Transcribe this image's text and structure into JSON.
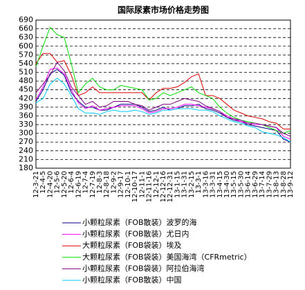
{
  "chart_data": {
    "type": "line",
    "title": "国际尿素市场价格走势图",
    "categories": [
      "12-3-21",
      "12-4-5",
      "12-4-20",
      "12-5-6",
      "12-5-20",
      "12-6-4",
      "12-6-19",
      "12-7-4",
      "12-7-19",
      "12-8-3",
      "12-8-18",
      "12-9-2",
      "12-9-17",
      "12-10-1",
      "12-10-17",
      "12-11-1",
      "12-11-16",
      "12-12-1",
      "12-12-16",
      "12-12-31",
      "13-1-15",
      "13-1-31",
      "13-2-15",
      "13-3-1",
      "13-3-16",
      "13-3-31",
      "13-4-15",
      "13-4-30",
      "13-5-15",
      "13-5-30",
      "13-6-14",
      "13-6-29",
      "13-7-14",
      "13-7-29",
      "13-8-13",
      "13-8-28",
      "13-9-12"
    ],
    "ylim": [
      180,
      690
    ],
    "yticks": [
      180,
      210,
      240,
      270,
      300,
      330,
      360,
      390,
      420,
      450,
      480,
      510,
      540,
      570,
      600,
      630,
      660,
      690
    ],
    "grid": true,
    "series": [
      {
        "name": "小颗粒尿素（FOB散装）波罗的海",
        "color": "#000080",
        "values": [
          410,
          450,
          505,
          520,
          500,
          440,
          410,
          390,
          390,
          380,
          380,
          390,
          400,
          400,
          400,
          390,
          375,
          380,
          390,
          380,
          385,
          395,
          395,
          400,
          385,
          380,
          370,
          355,
          345,
          340,
          330,
          325,
          320,
          315,
          310,
          280,
          270
        ]
      },
      {
        "name": "小颗粒尿素（FOB散装）尤日内",
        "color": "#ff00ff",
        "values": [
          415,
          460,
          520,
          525,
          505,
          450,
          405,
          385,
          395,
          380,
          385,
          390,
          395,
          395,
          395,
          385,
          370,
          375,
          385,
          385,
          390,
          400,
          400,
          395,
          390,
          385,
          375,
          360,
          350,
          340,
          335,
          330,
          330,
          325,
          320,
          290,
          280
        ]
      },
      {
        "name": "大颗粒尿素（FOB袋装）埃及",
        "color": "#dd0000",
        "values": [
          540,
          575,
          575,
          545,
          550,
          500,
          430,
          440,
          460,
          440,
          440,
          440,
          440,
          440,
          440,
          440,
          415,
          440,
          455,
          455,
          460,
          475,
          495,
          505,
          430,
          430,
          420,
          400,
          380,
          370,
          360,
          355,
          350,
          340,
          335,
          315,
          315
        ]
      },
      {
        "name": "大颗粒尿素（FOB袋装）美国海湾（CFRmetric）",
        "color": "#00dd00",
        "values": [
          530,
          600,
          665,
          640,
          630,
          540,
          440,
          470,
          490,
          460,
          450,
          450,
          465,
          460,
          455,
          450,
          415,
          420,
          440,
          430,
          440,
          450,
          460,
          440,
          430,
          420,
          390,
          370,
          355,
          345,
          340,
          335,
          330,
          320,
          310,
          300,
          310
        ]
      },
      {
        "name": "小颗粒尿素（FOB袋装）阿拉伯海湾",
        "color": "#800080",
        "values": [
          440,
          470,
          500,
          545,
          515,
          460,
          430,
          400,
          410,
          390,
          395,
          410,
          410,
          410,
          400,
          395,
          380,
          390,
          400,
          400,
          410,
          420,
          415,
          410,
          395,
          385,
          375,
          355,
          350,
          345,
          335,
          335,
          330,
          325,
          320,
          300,
          290
        ]
      },
      {
        "name": "小颗粒尿素（FOB散装）中国",
        "color": "#00c8ff",
        "values": [
          405,
          420,
          470,
          490,
          470,
          430,
          385,
          370,
          370,
          365,
          375,
          380,
          375,
          375,
          380,
          375,
          365,
          370,
          380,
          380,
          385,
          385,
          385,
          380,
          380,
          375,
          360,
          350,
          340,
          335,
          325,
          320,
          305,
          300,
          295,
          285,
          270
        ]
      }
    ]
  }
}
